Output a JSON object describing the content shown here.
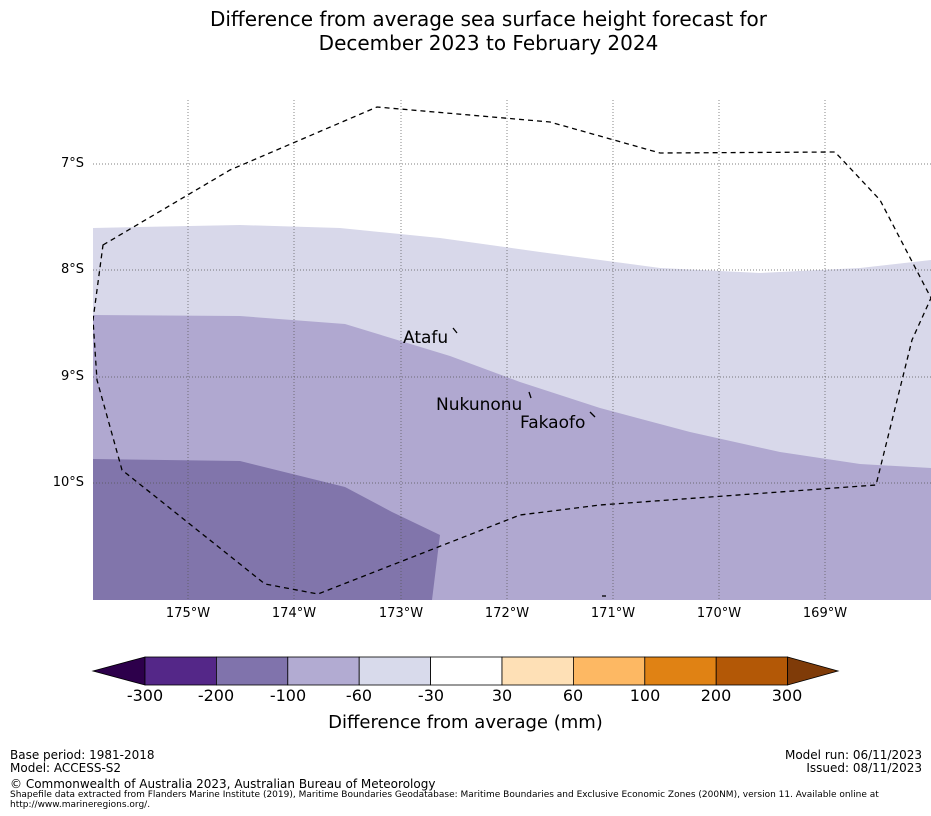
{
  "title": {
    "line1": "Difference from average sea surface height forecast for",
    "line2": "December 2023 to February 2024"
  },
  "map": {
    "lat_labels": [
      "7°S",
      "8°S",
      "9°S",
      "10°S"
    ],
    "lon_labels": [
      "175°W",
      "174°W",
      "173°W",
      "172°W",
      "171°W",
      "170°W",
      "169°W"
    ],
    "places": [
      "Atafu",
      "Nukunonu",
      "Fakaofo"
    ],
    "boundary": "EEZ boundary (dashed)"
  },
  "colorbar": {
    "ticks": [
      "-300",
      "-200",
      "-100",
      "-60",
      "-30",
      "30",
      "60",
      "100",
      "200",
      "300"
    ],
    "label": "Difference from average (mm)",
    "colors": [
      "#2d004b",
      "#542788",
      "#8073ac",
      "#b2abd2",
      "#d8daeb",
      "#ffffff",
      "#fee0b6",
      "#fdb863",
      "#e08214",
      "#b35806",
      "#7f3b08"
    ]
  },
  "fill_colors": {
    "light": "#d8d8ea",
    "medium": "#b0a8d0",
    "dark": "#8175ab"
  },
  "footer": {
    "base_period": "Base period: 1981-2018",
    "model": "Model: ACCESS-S2",
    "model_run": "Model run: 06/11/2023",
    "issued": "Issued: 08/11/2023",
    "copyright": "© Commonwealth of Australia 2023, Australian Bureau of Meteorology",
    "shapefile_line1": "Shapefile data extracted from Flanders Marine Institute (2019), Maritime Boundaries Geodatabase: Maritime Boundaries and Exclusive Economic Zones (200NM), version 11. Available online at",
    "shapefile_line2": "http://www.marineregions.org/."
  }
}
